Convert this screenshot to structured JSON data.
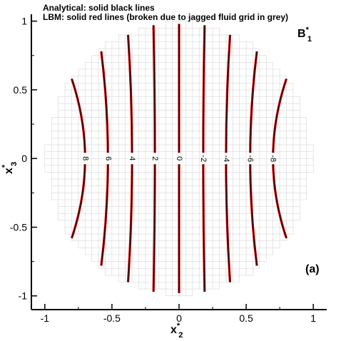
{
  "chart_data": {
    "type": "line",
    "notes": [
      "Analytical: solid black lines",
      "LBM: solid red lines (broken due to jagged fluid grid in grey)"
    ],
    "field_label": {
      "main": "B",
      "sup": "*",
      "sub": "1"
    },
    "panel_label": "(a)",
    "xlabel": {
      "main": "x",
      "sup": "*",
      "sub": "2"
    },
    "ylabel": {
      "main": "x",
      "sup": "*",
      "sub": "3"
    },
    "xlim": [
      -1.1,
      1.1
    ],
    "ylim": [
      -1.1,
      1.05
    ],
    "xticks": [
      -1,
      -0.5,
      0,
      0.5,
      1
    ],
    "yticks": [
      -1,
      -0.5,
      0,
      0.5,
      1
    ],
    "xtick_labels": [
      "-1",
      "-0.5",
      "0",
      "0.5",
      "1"
    ],
    "ytick_labels": [
      "-1",
      "-0.5",
      "0",
      "0.5",
      "1"
    ],
    "domain": {
      "shape": "circle",
      "radius": 0.98,
      "grid_spacing": 0.05,
      "grid_color": "#d6d6d6"
    },
    "colors": {
      "analytical": "#000000",
      "lbm": "#cc0000"
    },
    "contours": [
      {
        "level": "8",
        "x_center": -0.7,
        "x_ends": -0.8,
        "y_ends": 0.58
      },
      {
        "level": "6",
        "x_center": -0.53,
        "x_ends": -0.58,
        "y_ends": 0.78
      },
      {
        "level": "4",
        "x_center": -0.35,
        "x_ends": -0.38,
        "y_ends": 0.9
      },
      {
        "level": "2",
        "x_center": -0.18,
        "x_ends": -0.19,
        "y_ends": 0.97
      },
      {
        "level": "0",
        "x_center": 0.0,
        "x_ends": 0.0,
        "y_ends": 0.98
      },
      {
        "level": "-2",
        "x_center": 0.18,
        "x_ends": 0.19,
        "y_ends": 0.97
      },
      {
        "level": "-4",
        "x_center": 0.35,
        "x_ends": 0.38,
        "y_ends": 0.9
      },
      {
        "level": "-6",
        "x_center": 0.53,
        "x_ends": 0.58,
        "y_ends": 0.78
      },
      {
        "level": "-8",
        "x_center": 0.7,
        "x_ends": 0.8,
        "y_ends": 0.58
      }
    ]
  }
}
